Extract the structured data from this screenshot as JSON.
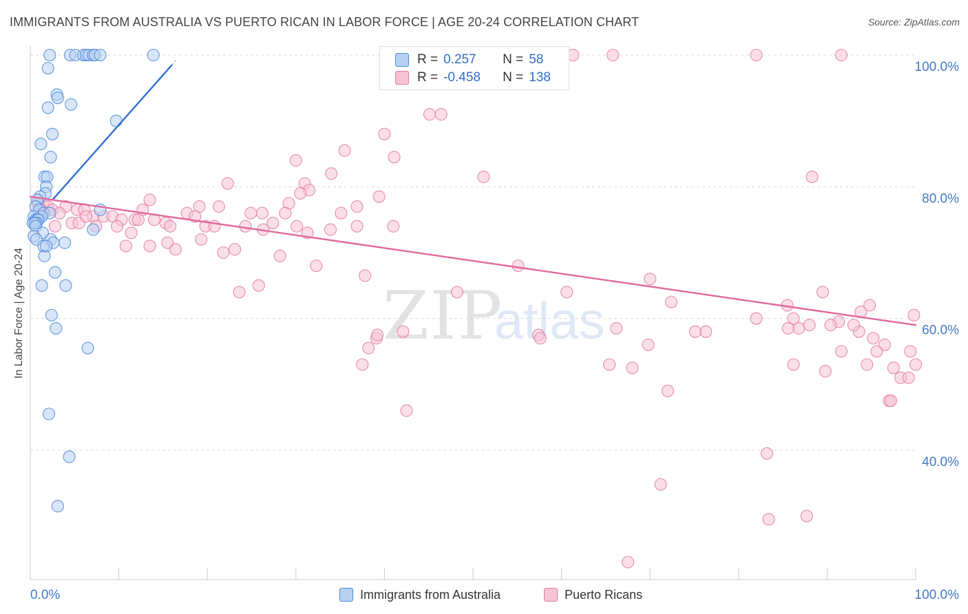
{
  "title": "IMMIGRANTS FROM AUSTRALIA VS PUERTO RICAN IN LABOR FORCE | AGE 20-24 CORRELATION CHART",
  "source": "Source: ZipAtlas.com",
  "watermark": {
    "zip": "ZIP",
    "atlas": "atlas"
  },
  "legend": {
    "rows": [
      {
        "r_label": "R =",
        "r_value": "0.257",
        "n_label": "N =",
        "n_value": "58",
        "color": "#4a86d8",
        "fill": "#b8d1f3"
      },
      {
        "r_label": "R =",
        "r_value": "-0.458",
        "n_label": "N =",
        "n_value": "138",
        "color": "#e07aa0",
        "fill": "#f6c3d5"
      }
    ]
  },
  "chart_data": {
    "type": "scatter",
    "title": "IMMIGRANTS FROM AUSTRALIA VS PUERTO RICAN IN LABOR FORCE | AGE 20-24 CORRELATION CHART",
    "xlabel": "",
    "ylabel": "In Labor Force | Age 20-24",
    "xlim": [
      0,
      100
    ],
    "ylim": [
      20,
      103
    ],
    "x_tick_labels": [
      "0.0%",
      "100.0%"
    ],
    "y_tick_labels": [
      "40.0%",
      "60.0%",
      "80.0%",
      "100.0%"
    ],
    "y_ticks": [
      40,
      60,
      80,
      100
    ],
    "grid": true,
    "legend_position": "top-center",
    "series": [
      {
        "name": "Immigrants from Australia",
        "color": "#4a86d8",
        "fill": "#b8d1f3",
        "trend": {
          "x": [
            2.5,
            16
          ],
          "y": [
            78,
            98.5
          ]
        },
        "points": [
          [
            2.2,
            100
          ],
          [
            4.5,
            100
          ],
          [
            5.1,
            100
          ],
          [
            6.0,
            100
          ],
          [
            6.3,
            100
          ],
          [
            6.6,
            100
          ],
          [
            7.1,
            100
          ],
          [
            7.3,
            100
          ],
          [
            7.9,
            100
          ],
          [
            13.9,
            100
          ],
          [
            2.0,
            98
          ],
          [
            3.0,
            94
          ],
          [
            3.1,
            93.5
          ],
          [
            2.0,
            92
          ],
          [
            4.6,
            92.5
          ],
          [
            9.7,
            90
          ],
          [
            2.5,
            88
          ],
          [
            1.2,
            86.5
          ],
          [
            2.3,
            84.5
          ],
          [
            1.6,
            81.5
          ],
          [
            1.9,
            81.5
          ],
          [
            1.8,
            80
          ],
          [
            1.7,
            79
          ],
          [
            1.1,
            78.5
          ],
          [
            0.8,
            78
          ],
          [
            0.6,
            77
          ],
          [
            1.0,
            76.5
          ],
          [
            7.9,
            76.5
          ],
          [
            1.5,
            76
          ],
          [
            2.2,
            76
          ],
          [
            1.3,
            75.5
          ],
          [
            0.4,
            75.5
          ],
          [
            0.6,
            75
          ],
          [
            0.8,
            75
          ],
          [
            0.9,
            75
          ],
          [
            0.7,
            74.5
          ],
          [
            0.3,
            74.5
          ],
          [
            0.5,
            74.5
          ],
          [
            0.6,
            74
          ],
          [
            7.1,
            73.5
          ],
          [
            1.4,
            73
          ],
          [
            0.4,
            72.5
          ],
          [
            0.7,
            72
          ],
          [
            2.3,
            72
          ],
          [
            2.6,
            71.5
          ],
          [
            3.9,
            71.5
          ],
          [
            1.5,
            71
          ],
          [
            1.6,
            69.5
          ],
          [
            2.8,
            67
          ],
          [
            1.3,
            65
          ],
          [
            4.0,
            65
          ],
          [
            2.4,
            60.5
          ],
          [
            2.9,
            58.5
          ],
          [
            6.5,
            55.5
          ],
          [
            2.1,
            45.5
          ],
          [
            4.4,
            39
          ],
          [
            3.1,
            31.5
          ],
          [
            1.8,
            71
          ]
        ]
      },
      {
        "name": "Puerto Ricans",
        "color": "#e07aa0",
        "fill": "#f6c3d5",
        "trend": {
          "x": [
            0,
            100
          ],
          "y": [
            78.5,
            59
          ]
        },
        "points": [
          [
            48.5,
            100
          ],
          [
            49.0,
            100
          ],
          [
            50.3,
            100
          ],
          [
            61.3,
            100
          ],
          [
            65.8,
            100
          ],
          [
            82.0,
            100
          ],
          [
            91.6,
            100
          ],
          [
            45.1,
            91
          ],
          [
            46.4,
            91
          ],
          [
            40.0,
            88
          ],
          [
            35.5,
            85.5
          ],
          [
            41.1,
            84.5
          ],
          [
            30.0,
            84
          ],
          [
            34.0,
            82
          ],
          [
            51.2,
            81.5
          ],
          [
            88.3,
            81.5
          ],
          [
            22.3,
            80.5
          ],
          [
            31.0,
            80.5
          ],
          [
            31.5,
            79.5
          ],
          [
            30.5,
            79
          ],
          [
            39.4,
            78.5
          ],
          [
            13.5,
            78
          ],
          [
            29.2,
            77.5
          ],
          [
            1.5,
            77.5
          ],
          [
            2.0,
            77
          ],
          [
            4.0,
            77
          ],
          [
            19.1,
            77
          ],
          [
            21.3,
            77
          ],
          [
            36.9,
            77
          ],
          [
            2.5,
            76.5
          ],
          [
            5.3,
            76.5
          ],
          [
            6.1,
            76.5
          ],
          [
            12.7,
            76.5
          ],
          [
            17.7,
            76
          ],
          [
            24.9,
            76
          ],
          [
            26.2,
            76
          ],
          [
            28.8,
            76
          ],
          [
            35.1,
            76
          ],
          [
            7.1,
            75.5
          ],
          [
            8.3,
            75.5
          ],
          [
            9.3,
            75.5
          ],
          [
            18.6,
            75.5
          ],
          [
            10.3,
            75
          ],
          [
            11.8,
            75
          ],
          [
            12.2,
            75
          ],
          [
            14.0,
            75
          ],
          [
            15.3,
            74.5
          ],
          [
            27.4,
            74.5
          ],
          [
            4.7,
            74.5
          ],
          [
            2.8,
            74
          ],
          [
            24.3,
            74
          ],
          [
            30.1,
            74
          ],
          [
            36.9,
            74
          ],
          [
            41.0,
            74
          ],
          [
            5.5,
            74.5
          ],
          [
            7.4,
            74
          ],
          [
            9.8,
            74
          ],
          [
            15.8,
            74
          ],
          [
            19.8,
            74
          ],
          [
            20.8,
            74
          ],
          [
            26.3,
            73.5
          ],
          [
            33.9,
            73.5
          ],
          [
            11.4,
            73
          ],
          [
            31.3,
            73
          ],
          [
            3.3,
            76
          ],
          [
            6.3,
            75.5
          ],
          [
            0.8,
            77.5
          ],
          [
            1.2,
            76.5
          ],
          [
            15.5,
            71.5
          ],
          [
            19.3,
            72
          ],
          [
            10.8,
            71
          ],
          [
            13.5,
            71
          ],
          [
            16.4,
            70.5
          ],
          [
            23.1,
            70.5
          ],
          [
            21.8,
            70
          ],
          [
            28.2,
            69.5
          ],
          [
            32.3,
            68
          ],
          [
            55.1,
            68
          ],
          [
            37.8,
            66.5
          ],
          [
            70.0,
            66
          ],
          [
            48.2,
            64
          ],
          [
            60.6,
            64
          ],
          [
            25.8,
            65
          ],
          [
            23.6,
            64
          ],
          [
            72.4,
            62.5
          ],
          [
            66.2,
            58.5
          ],
          [
            57.4,
            57.5
          ],
          [
            57.6,
            57
          ],
          [
            76.3,
            58
          ],
          [
            75.1,
            58
          ],
          [
            86.8,
            58.5
          ],
          [
            91.3,
            59.5
          ],
          [
            88.0,
            59
          ],
          [
            82.0,
            60
          ],
          [
            85.5,
            62
          ],
          [
            86.2,
            60
          ],
          [
            90.4,
            59
          ],
          [
            93.8,
            61
          ],
          [
            91.6,
            55
          ],
          [
            93.6,
            58
          ],
          [
            95.2,
            57
          ],
          [
            96.5,
            56
          ],
          [
            89.5,
            64
          ],
          [
            95.6,
            55
          ],
          [
            97.5,
            52.5
          ],
          [
            98.3,
            51
          ],
          [
            99.4,
            55
          ],
          [
            97.0,
            47.5
          ],
          [
            93.0,
            59
          ],
          [
            89.8,
            52
          ],
          [
            86.2,
            53
          ],
          [
            94.5,
            53
          ],
          [
            100,
            53
          ],
          [
            94.8,
            62
          ],
          [
            99.8,
            60.5
          ],
          [
            69.8,
            56
          ],
          [
            68.0,
            52.5
          ],
          [
            72.0,
            49
          ],
          [
            71.2,
            34.8
          ],
          [
            67.5,
            23
          ],
          [
            83.2,
            39.5
          ],
          [
            83.4,
            29.5
          ],
          [
            87.7,
            30
          ],
          [
            42.5,
            46
          ],
          [
            37.5,
            53
          ],
          [
            38.2,
            55.5
          ],
          [
            39.1,
            57
          ],
          [
            42.1,
            58
          ],
          [
            39.2,
            57.5
          ],
          [
            85.6,
            58.5
          ],
          [
            97.2,
            47.5
          ],
          [
            99.2,
            51
          ],
          [
            65.4,
            53
          ]
        ]
      }
    ]
  },
  "bottom_legend": [
    {
      "label": "Immigrants from Australia"
    },
    {
      "label": "Puerto Ricans"
    }
  ]
}
